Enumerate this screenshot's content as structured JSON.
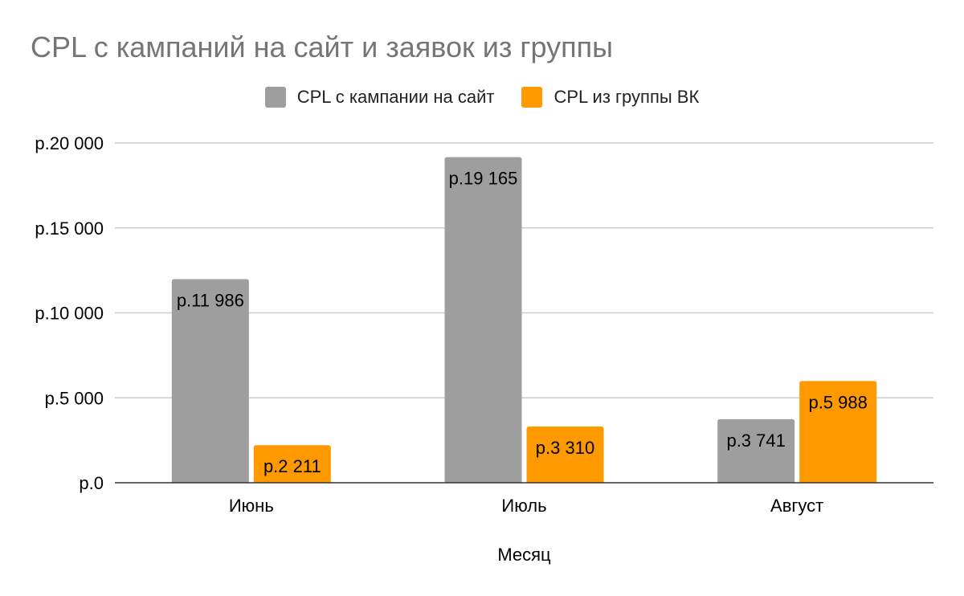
{
  "chart_data": {
    "type": "bar",
    "title": "CPL с кампаний на сайт и заявок из группы",
    "xlabel": "Месяц",
    "ylabel": "",
    "categories": [
      "Июнь",
      "Июль",
      "Август"
    ],
    "series": [
      {
        "name": "CPL с кампании на сайт",
        "color": "#9e9e9e",
        "values": [
          11986,
          19165,
          3741
        ],
        "labels": [
          "р.11 986",
          "р.19 165",
          "р.3 741"
        ]
      },
      {
        "name": "CPL из группы ВК",
        "color": "#ff9900",
        "values": [
          2211,
          3310,
          5988
        ],
        "labels": [
          "р.2 211",
          "р.3 310",
          "р.5 988"
        ]
      }
    ],
    "ylim": [
      0,
      20000
    ],
    "yticks": [
      0,
      5000,
      10000,
      15000,
      20000
    ],
    "ytick_labels": [
      "р.0",
      "р.5 000",
      "р.10 000",
      "р.15 000",
      "р.20 000"
    ],
    "grid": true,
    "legend_position": "top-center"
  }
}
